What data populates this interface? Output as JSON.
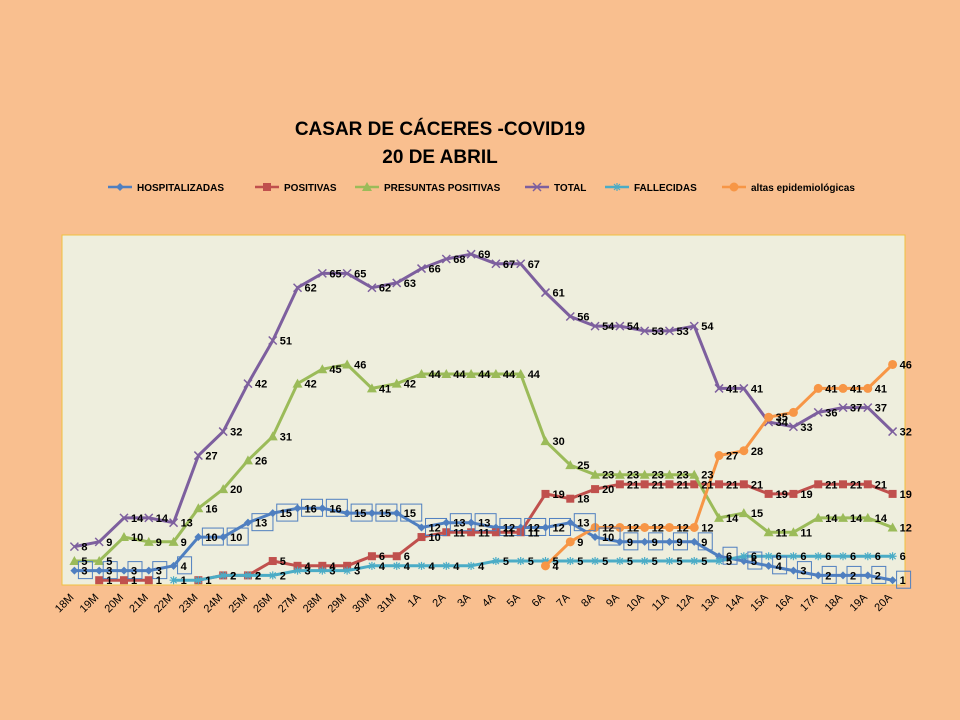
{
  "chart_data": {
    "type": "line",
    "title": "CASAR DE CÁCERES -COVID19",
    "subtitle": "20 DE ABRIL",
    "legend_position": "top",
    "grid": false,
    "plot_background": "#eeeedd",
    "plot_border": "#f0c040",
    "categories": [
      "18M",
      "19M",
      "20M",
      "21M",
      "22M",
      "23M",
      "24M",
      "25M",
      "26M",
      "27M",
      "28M",
      "29M",
      "30M",
      "31M",
      "1A",
      "2A",
      "3A",
      "4A",
      "5A",
      "6A",
      "7A",
      "8A",
      "9A",
      "10A",
      "11A",
      "12A",
      "13A",
      "14A",
      "15A",
      "16A",
      "17A",
      "18A",
      "19A",
      "20A"
    ],
    "ylim": [
      0,
      73
    ],
    "series": [
      {
        "name": "HOSPITALIZADAS",
        "color": "#4f7fc0",
        "marker": "diamond",
        "boxed_labels": true,
        "values": [
          3,
          3,
          3,
          3,
          4,
          10,
          10,
          13,
          15,
          16,
          16,
          15,
          15,
          15,
          12,
          13,
          13,
          12,
          12,
          12,
          13,
          10,
          9,
          9,
          9,
          9,
          6,
          5,
          4,
          3,
          2,
          2,
          2,
          1
        ],
        "labels": [
          "3",
          "3",
          "3",
          "3",
          "4",
          "10",
          "10",
          "13",
          "15",
          "16",
          "16",
          "15",
          "15",
          "15",
          "12",
          "13",
          "13",
          "12",
          "12",
          "12",
          "13",
          "10",
          "9",
          "9",
          "9",
          "9",
          "6",
          "5",
          "4",
          "3",
          "2",
          "2",
          "2",
          "1"
        ]
      },
      {
        "name": "POSITIVAS",
        "color": "#c0504d",
        "marker": "square",
        "boxed_labels": false,
        "values": [
          null,
          1,
          1,
          1,
          null,
          1,
          2,
          2,
          5,
          4,
          4,
          4,
          6,
          6,
          10,
          11,
          11,
          11,
          11,
          19,
          18,
          20,
          21,
          21,
          21,
          21,
          21,
          21,
          19,
          19,
          21,
          21,
          21,
          19
        ],
        "labels": [
          "",
          "1",
          "1",
          "1",
          "",
          "1",
          "2",
          "2",
          "5",
          "4",
          "4",
          "4",
          "6",
          "6",
          "10",
          "11",
          "11",
          "11",
          "11",
          "19",
          "18",
          "20",
          "21",
          "21",
          "21",
          "21",
          "21",
          "21",
          "19",
          "19",
          "21",
          "21",
          "21",
          "19"
        ]
      },
      {
        "name": "PRESUNTAS POSITIVAS",
        "color": "#9bbb59",
        "marker": "triangle",
        "boxed_labels": false,
        "values": [
          5,
          5,
          10,
          9,
          9,
          16,
          20,
          26,
          31,
          42,
          45,
          46,
          41,
          42,
          44,
          44,
          44,
          44,
          44,
          30,
          25,
          23,
          23,
          23,
          23,
          23,
          14,
          15,
          11,
          11,
          14,
          14,
          14,
          12
        ],
        "labels": [
          "5",
          "5",
          "10",
          "9",
          "9",
          "16",
          "20",
          "26",
          "31",
          "42",
          "45",
          "46",
          "41",
          "42",
          "44",
          "44",
          "44",
          "44",
          "44",
          "30",
          "25",
          "23",
          "23",
          "23",
          "23",
          "23",
          "14",
          "15",
          "11",
          "11",
          "14",
          "14",
          "14",
          "12"
        ]
      },
      {
        "name": "TOTAL",
        "color": "#7d5f9e",
        "marker": "x",
        "boxed_labels": false,
        "values": [
          8,
          9,
          14,
          14,
          13,
          27,
          32,
          42,
          51,
          62,
          65,
          65,
          62,
          63,
          66,
          68,
          69,
          67,
          67,
          61,
          56,
          54,
          54,
          53,
          53,
          54,
          41,
          41,
          34,
          33,
          36,
          37,
          37,
          32
        ],
        "labels": [
          "8",
          "9",
          "14",
          "14",
          "13",
          "27",
          "32",
          "42",
          "51",
          "62",
          "65",
          "65",
          "62",
          "63",
          "66",
          "68",
          "69",
          "67",
          "67",
          "61",
          "56",
          "54",
          "54",
          "53",
          "53",
          "54",
          "41",
          "41",
          "34",
          "33",
          "36",
          "37",
          "37",
          "32"
        ]
      },
      {
        "name": "FALLECIDAS",
        "color": "#4bacc6",
        "marker": "star",
        "boxed_labels": false,
        "values": [
          null,
          null,
          null,
          null,
          1,
          1,
          2,
          2,
          2,
          3,
          3,
          3,
          4,
          4,
          4,
          4,
          4,
          5,
          5,
          5,
          5,
          5,
          5,
          5,
          5,
          5,
          5,
          6,
          6,
          6,
          6,
          6,
          6,
          6
        ],
        "labels": [
          "",
          "",
          "",
          "",
          "1",
          "1",
          "2",
          "2",
          "2",
          "3",
          "3",
          "3",
          "4",
          "4",
          "4",
          "4",
          "4",
          "5",
          "5",
          "5",
          "5",
          "5",
          "5",
          "5",
          "5",
          "5",
          "5",
          "6",
          "6",
          "6",
          "6",
          "6",
          "6",
          "6"
        ]
      },
      {
        "name": "altas epidemiológicas",
        "color": "#f79646",
        "marker": "circle",
        "boxed_labels": false,
        "values": [
          null,
          null,
          null,
          null,
          null,
          null,
          null,
          null,
          null,
          null,
          null,
          null,
          null,
          null,
          null,
          null,
          null,
          null,
          null,
          4,
          9,
          12,
          12,
          12,
          12,
          12,
          27,
          28,
          35,
          36,
          41,
          41,
          41,
          46
        ],
        "labels": [
          "",
          "",
          "",
          "",
          "",
          "",
          "",
          "",
          "",
          "",
          "",
          "",
          "",
          "",
          "",
          "",
          "",
          "",
          "",
          "4",
          "9",
          "12",
          "12",
          "12",
          "12",
          "12",
          "27",
          "28",
          "35",
          "",
          "41",
          "41",
          "41",
          "46"
        ]
      }
    ]
  }
}
